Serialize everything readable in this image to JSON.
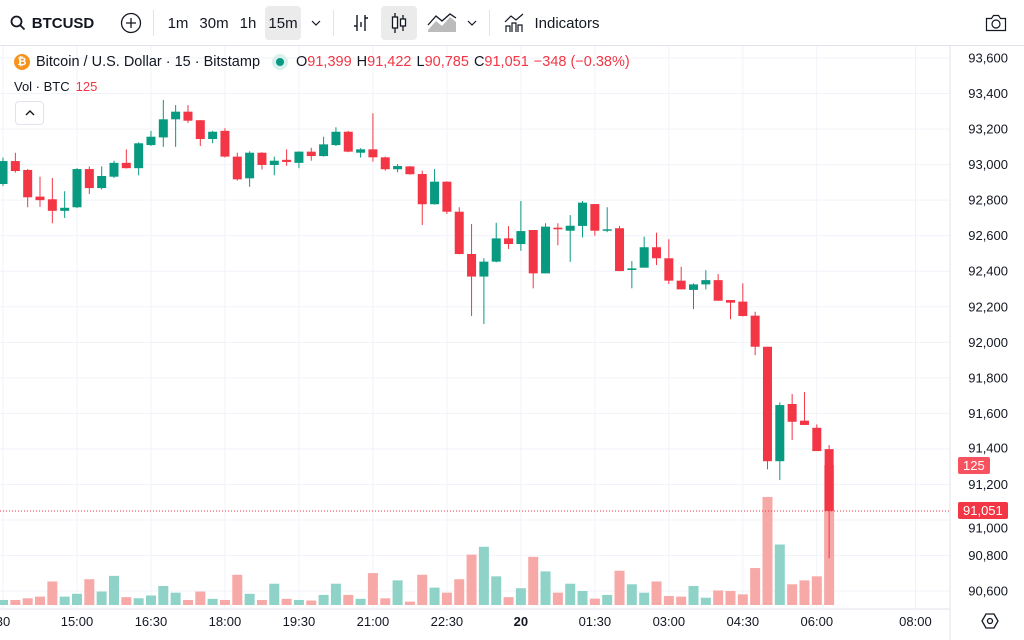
{
  "toolbar": {
    "symbol": "BTCUSD",
    "intervals": [
      "1m",
      "30m",
      "1h",
      "15m"
    ],
    "active_interval": "15m",
    "indicators_label": "Indicators"
  },
  "legend": {
    "title": "Bitcoin / U.S. Dollar · 15 · Bitstamp",
    "o_label": "O",
    "o": "91,399",
    "h_label": "H",
    "h": "91,422",
    "l_label": "L",
    "l": "90,785",
    "c_label": "C",
    "c": "91,051",
    "change": "−348 (−0.38%)",
    "vol_label": "Vol · BTC",
    "vol": "125"
  },
  "colors": {
    "up": "#089981",
    "down": "#f23645",
    "up_vol": "#8fd3c8",
    "down_vol": "#f7a9a7"
  },
  "chart_data": {
    "type": "candlestick",
    "symbol": "BTCUSD",
    "interval": "15",
    "ylim": [
      90500,
      93700
    ],
    "price_ticks": [
      "93,600",
      "93,400",
      "93,200",
      "93,000",
      "92,800",
      "92,600",
      "92,400",
      "92,200",
      "92,000",
      "91,800",
      "91,600",
      "91,400",
      "91,200",
      "91,000",
      "90,800",
      "90,600"
    ],
    "price_tick_values": [
      93600,
      93400,
      93200,
      93000,
      92800,
      92600,
      92400,
      92200,
      92000,
      91800,
      91600,
      91400,
      91200,
      91000,
      90800,
      90600
    ],
    "time_ticks": [
      {
        "label": "30",
        "index": -6
      },
      {
        "label": "15:00",
        "index": 0
      },
      {
        "label": "16:30",
        "index": 6
      },
      {
        "label": "18:00",
        "index": 12
      },
      {
        "label": "19:30",
        "index": 18
      },
      {
        "label": "21:00",
        "index": 24
      },
      {
        "label": "22:30",
        "index": 30
      },
      {
        "label": "20",
        "index": 36,
        "bold": true
      },
      {
        "label": "01:30",
        "index": 42
      },
      {
        "label": "03:00",
        "index": 48
      },
      {
        "label": "04:30",
        "index": 54
      },
      {
        "label": "06:00",
        "index": 60
      },
      {
        "label": "08:00",
        "index": 68
      }
    ],
    "first_index": -6,
    "candles_ohlcv": [
      [
        92891,
        93040,
        92880,
        93020,
        4.5
      ],
      [
        93020,
        93067,
        92955,
        92964,
        4.5
      ],
      [
        92970,
        92975,
        92760,
        92816,
        6
      ],
      [
        92820,
        92932,
        92763,
        92800,
        7.5
      ],
      [
        92805,
        92925,
        92670,
        92740,
        21
      ],
      [
        92740,
        92850,
        92700,
        92757,
        7.5
      ],
      [
        92760,
        92980,
        92755,
        92975,
        10
      ],
      [
        92975,
        92990,
        92835,
        92868,
        23
      ],
      [
        92868,
        92990,
        92860,
        92936,
        12
      ],
      [
        92932,
        93022,
        92925,
        93010,
        26
      ],
      [
        93010,
        93086,
        92978,
        92980,
        7
      ],
      [
        92980,
        93125,
        92940,
        93120,
        6
      ],
      [
        93110,
        93190,
        93105,
        93157,
        8.5
      ],
      [
        93153,
        93364,
        93100,
        93255,
        17
      ],
      [
        93255,
        93335,
        93100,
        93298,
        11
      ],
      [
        93298,
        93335,
        93235,
        93247,
        4.5
      ],
      [
        93250,
        93250,
        93105,
        93144,
        12
      ],
      [
        93144,
        93190,
        93120,
        93185,
        5.5
      ],
      [
        93190,
        93205,
        93040,
        93045,
        4.5
      ],
      [
        93045,
        93067,
        92910,
        92917,
        27
      ],
      [
        92923,
        93075,
        92875,
        93067,
        10
      ],
      [
        93067,
        93070,
        92973,
        92998,
        4.5
      ],
      [
        92998,
        93045,
        92940,
        93022,
        19
      ],
      [
        93027,
        93086,
        92994,
        93015,
        5.5
      ],
      [
        93010,
        93075,
        92980,
        93073,
        4.5
      ],
      [
        93073,
        93095,
        93022,
        93048,
        4
      ],
      [
        93048,
        93157,
        93045,
        93114,
        9
      ],
      [
        93110,
        93210,
        93105,
        93185,
        19
      ],
      [
        93185,
        93190,
        93070,
        93073,
        9
      ],
      [
        93067,
        93092,
        93040,
        93086,
        5.5
      ],
      [
        93086,
        93289,
        93017,
        93041,
        28.5
      ],
      [
        93041,
        93045,
        92966,
        92974,
        6
      ],
      [
        92974,
        93003,
        92957,
        92992,
        22
      ],
      [
        92990,
        92992,
        92943,
        92946,
        3
      ],
      [
        92947,
        92966,
        92660,
        92777,
        27
      ],
      [
        92777,
        92975,
        92775,
        92904,
        15.5
      ],
      [
        92904,
        92906,
        92722,
        92735,
        11
      ],
      [
        92735,
        92760,
        92495,
        92497,
        23
      ],
      [
        92497,
        92666,
        92148,
        92370,
        45
      ],
      [
        92370,
        92473,
        92103,
        92454,
        52
      ],
      [
        92454,
        92673,
        92450,
        92585,
        25.6
      ],
      [
        92585,
        92654,
        92525,
        92553,
        7
      ],
      [
        92553,
        92795,
        92515,
        92626,
        15
      ],
      [
        92632,
        92632,
        92304,
        92388,
        43
      ],
      [
        92388,
        92670,
        92388,
        92651,
        30
      ],
      [
        92645,
        92670,
        92546,
        92636,
        11
      ],
      [
        92628,
        92716,
        92453,
        92656,
        19
      ],
      [
        92655,
        92795,
        92590,
        92786,
        12.5
      ],
      [
        92778,
        92778,
        92600,
        92628,
        5.7
      ],
      [
        92628,
        92760,
        92620,
        92636,
        9
      ],
      [
        92642,
        92655,
        92400,
        92401,
        30.6
      ],
      [
        92407,
        92457,
        92304,
        92416,
        18.5
      ],
      [
        92420,
        92594,
        92420,
        92535,
        11
      ],
      [
        92535,
        92617,
        92435,
        92473,
        21
      ],
      [
        92473,
        92580,
        92328,
        92347,
        8
      ],
      [
        92347,
        92425,
        92298,
        92298,
        7.5
      ],
      [
        92295,
        92332,
        92187,
        92326,
        17
      ],
      [
        92326,
        92406,
        92298,
        92350,
        6.5
      ],
      [
        92350,
        92384,
        92234,
        92234,
        13
      ],
      [
        92238,
        92238,
        92130,
        92223,
        12.5
      ],
      [
        92229,
        92332,
        92145,
        92148,
        9.5
      ],
      [
        92150,
        92172,
        91928,
        91975,
        33
      ],
      [
        91975,
        91975,
        91285,
        91331,
        96.5
      ],
      [
        91331,
        91662,
        91225,
        91647,
        54
      ],
      [
        91653,
        91709,
        91450,
        91553,
        18.5
      ],
      [
        91559,
        91720,
        91535,
        91535,
        22
      ],
      [
        91519,
        91538,
        91388,
        91388,
        25.6
      ],
      [
        91399,
        91422,
        90785,
        91051,
        125
      ]
    ],
    "last_price": 91051,
    "last_price_label": "91,051",
    "last_volume_label": "125"
  }
}
